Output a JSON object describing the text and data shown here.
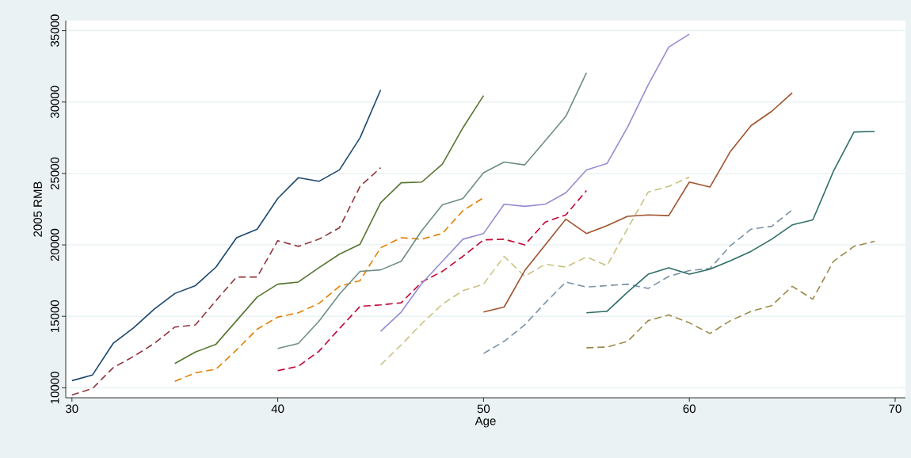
{
  "chart_data": {
    "type": "line",
    "xlabel": "Age",
    "ylabel": "2005 RMB",
    "xlim": [
      29.7,
      70.5
    ],
    "ylim": [
      9300,
      35700
    ],
    "xticks": [
      30,
      40,
      50,
      60,
      70
    ],
    "yticks": [
      10000,
      15000,
      20000,
      25000,
      30000,
      35000
    ],
    "grid": "y",
    "series": [
      {
        "color": "#1a476f",
        "line_style": "solid",
        "x": [
          30,
          31,
          32,
          33,
          34,
          35,
          36,
          37,
          38,
          39,
          40,
          41,
          42,
          43,
          44,
          45
        ],
        "values": [
          10500,
          10900,
          13100,
          14200,
          15500,
          16600,
          17150,
          18450,
          20500,
          21100,
          23250,
          24700,
          24450,
          25250,
          27500,
          30850
        ]
      },
      {
        "color": "#90353b",
        "line_style": "dashed",
        "x": [
          30,
          31,
          32,
          33,
          34,
          35,
          36,
          37,
          38,
          39,
          40,
          41,
          42,
          43,
          44,
          45
        ],
        "values": [
          9500,
          9950,
          11400,
          12200,
          13100,
          14250,
          14400,
          16100,
          17750,
          17750,
          20300,
          19900,
          20400,
          21200,
          24100,
          25400
        ]
      },
      {
        "color": "#55752f",
        "line_style": "solid",
        "x": [
          35,
          36,
          37,
          38,
          39,
          40,
          41,
          42,
          43,
          44,
          45,
          46,
          47,
          48,
          49,
          50
        ],
        "values": [
          11700,
          12500,
          13050,
          14700,
          16350,
          17250,
          17400,
          18400,
          19350,
          20050,
          22950,
          24350,
          24400,
          25650,
          28200,
          30450
        ]
      },
      {
        "color": "#e37e00",
        "line_style": "dashed",
        "x": [
          35,
          36,
          37,
          38,
          39,
          40,
          41,
          42,
          43,
          44,
          45,
          46,
          47,
          48,
          49,
          50
        ],
        "values": [
          10450,
          11050,
          11300,
          12650,
          14100,
          14950,
          15250,
          15900,
          17100,
          17500,
          19800,
          20500,
          20400,
          20800,
          22400,
          23300
        ]
      },
      {
        "color": "#6e8e84",
        "line_style": "solid",
        "x": [
          40,
          41,
          42,
          43,
          44,
          45,
          46,
          47,
          48,
          49,
          50,
          51,
          52,
          53,
          54,
          55
        ],
        "values": [
          12750,
          13100,
          14650,
          16550,
          18150,
          18250,
          18850,
          21000,
          22800,
          23250,
          25050,
          25800,
          25600,
          27300,
          29000,
          32050
        ]
      },
      {
        "color": "#c10534",
        "line_style": "dashed",
        "x": [
          40,
          41,
          42,
          43,
          44,
          45,
          46,
          47,
          48,
          49,
          50,
          51,
          52,
          53,
          54,
          55
        ],
        "values": [
          11200,
          11500,
          12550,
          14150,
          15700,
          15800,
          15950,
          17400,
          18150,
          19200,
          20350,
          20400,
          20000,
          21600,
          22100,
          23800
        ]
      },
      {
        "color": "#938dd2",
        "line_style": "solid",
        "x": [
          45,
          46,
          47,
          48,
          49,
          50,
          51,
          52,
          53,
          54,
          55,
          56,
          57,
          58,
          59,
          60
        ],
        "values": [
          13950,
          15300,
          17300,
          18850,
          20400,
          20800,
          22850,
          22700,
          22850,
          23650,
          25250,
          25700,
          28250,
          31200,
          33850,
          34750
        ]
      },
      {
        "color": "#cac27e",
        "line_style": "dashed",
        "x": [
          45,
          46,
          47,
          48,
          49,
          50,
          51,
          52,
          53,
          54,
          55,
          56,
          57,
          58,
          59,
          60
        ],
        "values": [
          11600,
          13000,
          14500,
          15850,
          16800,
          17250,
          19200,
          17800,
          18650,
          18450,
          19150,
          18550,
          21150,
          23700,
          24100,
          24750
        ]
      },
      {
        "color": "#a0522d",
        "line_style": "solid",
        "x": [
          50,
          51,
          52,
          53,
          54,
          55,
          56,
          57,
          58,
          59,
          60,
          61,
          62,
          63,
          64,
          65
        ],
        "values": [
          15300,
          15650,
          18200,
          20000,
          21800,
          20800,
          21350,
          22000,
          22100,
          22050,
          24400,
          24050,
          26550,
          28350,
          29350,
          30650
        ]
      },
      {
        "color": "#7b92a8",
        "line_style": "dashed",
        "x": [
          50,
          51,
          52,
          53,
          54,
          55,
          56,
          57,
          58,
          59,
          60,
          61,
          62,
          63,
          64,
          65
        ],
        "values": [
          12400,
          13250,
          14400,
          15950,
          17400,
          17050,
          17150,
          17250,
          16950,
          17800,
          18200,
          18350,
          19950,
          21100,
          21300,
          22450
        ]
      },
      {
        "color": "#2d6d66",
        "line_style": "solid",
        "x": [
          55,
          56,
          57,
          58,
          59,
          60,
          61,
          62,
          63,
          64,
          65,
          66,
          67,
          68,
          69
        ],
        "values": [
          15250,
          15350,
          16700,
          17950,
          18400,
          17950,
          18300,
          18900,
          19550,
          20400,
          21400,
          21750,
          25150,
          27900,
          27950
        ]
      },
      {
        "color": "#9c8847",
        "line_style": "dashed",
        "x": [
          55,
          56,
          57,
          58,
          59,
          60,
          61,
          62,
          63,
          64,
          65,
          66,
          67,
          68,
          69
        ],
        "values": [
          12800,
          12850,
          13250,
          14700,
          15100,
          14550,
          13800,
          14700,
          15350,
          15750,
          17100,
          16200,
          18850,
          19900,
          20250
        ]
      }
    ]
  }
}
